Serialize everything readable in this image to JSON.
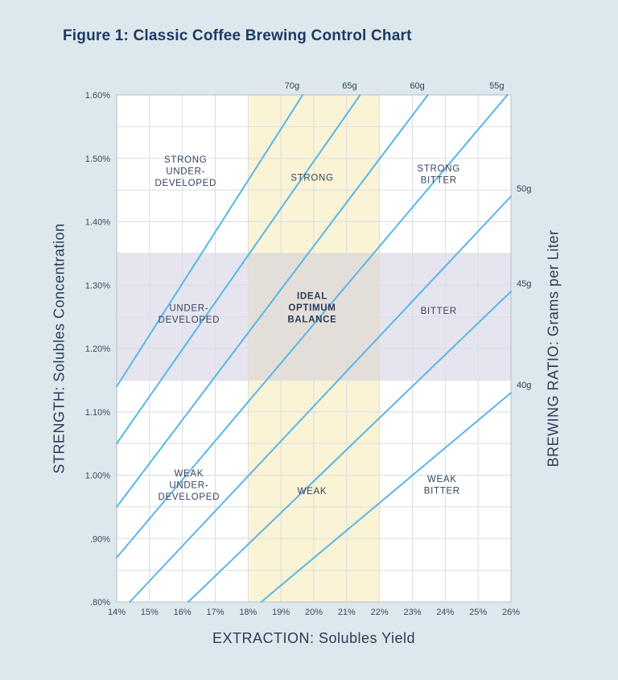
{
  "page": {
    "background": "#dce8ec"
  },
  "chart_data": {
    "type": "line",
    "title": "Figure 1: Classic Coffee Brewing Control Chart",
    "xlabel": "EXTRACTION: Solubles Yield",
    "ylabel_left": "STRENGTH: Solubles Concentration",
    "ylabel_right": "BREWING RATIO: Grams per Liter",
    "xlim": [
      14,
      26
    ],
    "ylim": [
      0.8,
      1.6
    ],
    "x_tick_values": [
      14,
      15,
      16,
      17,
      18,
      19,
      20,
      21,
      22,
      23,
      24,
      25,
      26
    ],
    "x_tick_labels": [
      "14%",
      "15%",
      "16%",
      "17%",
      "18%",
      "19%",
      "20%",
      "21%",
      "22%",
      "23%",
      "24%",
      "25%",
      "26%"
    ],
    "y_tick_values": [
      1.6,
      1.5,
      1.4,
      1.3,
      1.2,
      1.1,
      1.0,
      0.9,
      0.8
    ],
    "y_tick_labels": [
      "1.60%",
      "1.50%",
      "1.40%",
      "1.30%",
      "1.20%",
      "1.10%",
      "1.00%",
      ".90%",
      ".80%"
    ],
    "y_minor_step": 0.05,
    "grid": true,
    "legend": "none",
    "colors": {
      "plot_background": "#ffffff",
      "grid": "#d9dde3",
      "border": "#b7bfc9",
      "ratio_line": "#58b7e6",
      "ideal_extraction_band": "#faf3d6",
      "ideal_strength_band": "rgba(200,197,220,0.45)",
      "title_text": "#1d3a66",
      "text": "#2c3b58"
    },
    "bands": {
      "ideal_extraction": {
        "from": 18,
        "to": 22
      },
      "ideal_strength": {
        "from": 1.15,
        "to": 1.35
      }
    },
    "ratio_lines": [
      {
        "label": "70g",
        "grams_per_liter": 70,
        "x": [
          14,
          19.66
        ],
        "y": [
          1.14,
          1.6
        ],
        "label_pos": "top"
      },
      {
        "label": "65g",
        "grams_per_liter": 65,
        "x": [
          14,
          21.41
        ],
        "y": [
          1.05,
          1.6
        ],
        "label_pos": "top"
      },
      {
        "label": "60g",
        "grams_per_liter": 60,
        "x": [
          14,
          23.47
        ],
        "y": [
          0.95,
          1.6
        ],
        "label_pos": "top"
      },
      {
        "label": "55g",
        "grams_per_liter": 55,
        "x": [
          14,
          25.89
        ],
        "y": [
          0.87,
          1.6
        ],
        "label_pos": "top"
      },
      {
        "label": "50g",
        "grams_per_liter": 50,
        "x": [
          14.4,
          26
        ],
        "y": [
          0.8,
          1.44
        ],
        "label_pos": "right"
      },
      {
        "label": "45g",
        "grams_per_liter": 45,
        "x": [
          16.18,
          26
        ],
        "y": [
          0.8,
          1.29
        ],
        "label_pos": "right"
      },
      {
        "label": "40g",
        "grams_per_liter": 40,
        "x": [
          18.4,
          26
        ],
        "y": [
          0.8,
          1.13
        ],
        "label_pos": "right"
      }
    ],
    "regions": [
      {
        "lines": [
          "STRONG",
          "UNDER-",
          "DEVELOPED"
        ],
        "x": 16.1,
        "y": 1.48,
        "bold": false
      },
      {
        "lines": [
          "STRONG"
        ],
        "x": 19.95,
        "y": 1.47,
        "bold": false
      },
      {
        "lines": [
          "STRONG",
          "BITTER"
        ],
        "x": 23.8,
        "y": 1.475,
        "bold": false
      },
      {
        "lines": [
          "UNDER-",
          "DEVELOPED"
        ],
        "x": 16.2,
        "y": 1.255,
        "bold": false
      },
      {
        "lines": [
          "IDEAL",
          "OPTIMUM",
          "BALANCE"
        ],
        "x": 19.95,
        "y": 1.265,
        "bold": true
      },
      {
        "lines": [
          "BITTER"
        ],
        "x": 23.8,
        "y": 1.26,
        "bold": false
      },
      {
        "lines": [
          "WEAK",
          "UNDER-",
          "DEVELOPED"
        ],
        "x": 16.2,
        "y": 0.985,
        "bold": false
      },
      {
        "lines": [
          "WEAK"
        ],
        "x": 19.95,
        "y": 0.975,
        "bold": false
      },
      {
        "lines": [
          "WEAK",
          "BITTER"
        ],
        "x": 23.9,
        "y": 0.985,
        "bold": false
      }
    ]
  }
}
